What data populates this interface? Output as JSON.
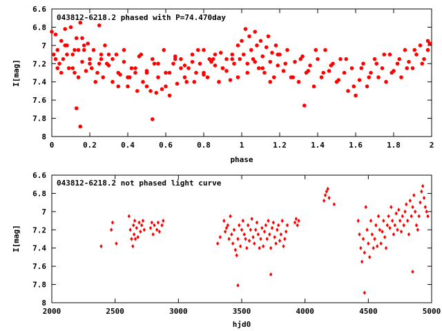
{
  "chart_data": [
    {
      "type": "scatter",
      "title": "043812-6218.2 phased with P=74.470day",
      "xlabel": "phase",
      "ylabel": "I[mag]",
      "xlim": [
        0,
        2
      ],
      "ylim": [
        6.6,
        8
      ],
      "y_inverted": true,
      "grid": false,
      "legend": "none",
      "marker": "filled-circle",
      "color": "#ff0000",
      "x_ticks": [
        "0",
        "0.2",
        "0.4",
        "0.6",
        "0.8",
        "1",
        "1.2",
        "1.4",
        "1.6",
        "1.8",
        "2"
      ],
      "y_ticks": [
        "6.6",
        "6.8",
        "7",
        "7.2",
        "7.4",
        "7.6",
        "7.8",
        "8"
      ],
      "series": [
        {
          "x": [
            0.0,
            0.01,
            0.02,
            0.03,
            0.04,
            0.05,
            0.06,
            0.07,
            0.08,
            0.09,
            0.1,
            0.11,
            0.12,
            0.13,
            0.14,
            0.15,
            0.16,
            0.17,
            0.18,
            0.19,
            0.2,
            0.22,
            0.24,
            0.25,
            0.26,
            0.27,
            0.28,
            0.3,
            0.32,
            0.34,
            0.36,
            0.38,
            0.4,
            0.42,
            0.44,
            0.46,
            0.48,
            0.5,
            0.52,
            0.54,
            0.56,
            0.58,
            0.6,
            0.62,
            0.64,
            0.66,
            0.68,
            0.7,
            0.72,
            0.74,
            0.76,
            0.78,
            0.8,
            0.82,
            0.84,
            0.86,
            0.88,
            0.9,
            0.92,
            0.94,
            0.96,
            0.98,
            0.99,
            0.02,
            0.05,
            0.08,
            0.11,
            0.14,
            0.17,
            0.2,
            0.23,
            0.26,
            0.29,
            0.32,
            0.35,
            0.38,
            0.41,
            0.44,
            0.47,
            0.5,
            0.53,
            0.56,
            0.59,
            0.62,
            0.65,
            0.68,
            0.71,
            0.74,
            0.77,
            0.8,
            0.83,
            0.86,
            0.89,
            0.92,
            0.95,
            0.98,
            0.03,
            0.07,
            0.12,
            0.16,
            0.21,
            0.25,
            0.3,
            0.35,
            0.4,
            0.45,
            0.5,
            0.55,
            0.6,
            0.65,
            0.7,
            0.75,
            0.8,
            0.85,
            0.9,
            0.95,
            0.13,
            0.15,
            0.53
          ],
          "y": [
            6.85,
            7.1,
            6.88,
            7.05,
            7.2,
            6.95,
            7.15,
            6.82,
            7.0,
            7.25,
            6.8,
            7.1,
            7.3,
            6.92,
            7.05,
            6.75,
            7.18,
            7.0,
            7.28,
            6.98,
            7.2,
            7.05,
            7.3,
            6.78,
            7.15,
            7.35,
            7.0,
            7.22,
            7.4,
            7.1,
            7.32,
            7.18,
            7.45,
            7.25,
            7.3,
            7.12,
            7.4,
            7.28,
            7.5,
            7.2,
            7.35,
            7.48,
            7.3,
            7.55,
            7.2,
            7.42,
            7.15,
            7.35,
            7.25,
            7.1,
            7.3,
            7.2,
            7.05,
            7.35,
            7.18,
            7.1,
            7.4,
            7.25,
            7.15,
            7.38,
            7.2,
            7.0,
            7.15,
            7.15,
            7.3,
            7.1,
            7.25,
            7.35,
            7.05,
            7.15,
            7.4,
            7.1,
            7.2,
            7.15,
            7.3,
            7.05,
            7.35,
            7.25,
            7.1,
            7.45,
            7.15,
            7.2,
            7.05,
            7.3,
            7.12,
            7.25,
            7.4,
            7.18,
            7.05,
            7.32,
            7.15,
            7.22,
            7.08,
            7.28,
            7.15,
            7.35,
            7.25,
            7.0,
            7.05,
            6.92,
            7.25,
            7.2,
            7.1,
            7.45,
            7.35,
            7.5,
            7.3,
            7.52,
            7.45,
            7.15,
            7.22,
            7.4,
            7.3,
            7.15,
            7.25,
            7.1,
            7.69,
            7.89,
            7.81
          ]
        },
        {
          "x": [
            1.0,
            1.01,
            1.02,
            1.03,
            1.04,
            1.05,
            1.06,
            1.07,
            1.08,
            1.09,
            1.1,
            1.11,
            1.12,
            1.13,
            1.14,
            1.15,
            1.16,
            1.17,
            1.18,
            1.19,
            1.2,
            1.22,
            1.24,
            1.26,
            1.28,
            1.3,
            1.32,
            1.34,
            1.36,
            1.38,
            1.4,
            1.42,
            1.44,
            1.46,
            1.48,
            1.5,
            1.52,
            1.54,
            1.56,
            1.58,
            1.6,
            1.62,
            1.64,
            1.66,
            1.68,
            1.7,
            1.72,
            1.74,
            1.76,
            1.78,
            1.8,
            1.82,
            1.84,
            1.86,
            1.88,
            1.9,
            1.92,
            1.94,
            1.96,
            1.98,
            1.99,
            1.03,
            1.07,
            1.11,
            1.15,
            1.19,
            1.23,
            1.27,
            1.31,
            1.35,
            1.39,
            1.43,
            1.47,
            1.51,
            1.55,
            1.59,
            1.63,
            1.67,
            1.71,
            1.75,
            1.79,
            1.83,
            1.87,
            1.91,
            1.95,
            1.98,
            1.33
          ],
          "y": [
            6.95,
            7.1,
            6.82,
            7.2,
            6.9,
            7.05,
            7.15,
            6.85,
            7.0,
            7.25,
            6.95,
            7.12,
            7.3,
            7.02,
            6.9,
            7.18,
            7.08,
            7.35,
            7.0,
            7.22,
            7.1,
            7.28,
            7.05,
            7.35,
            7.18,
            7.4,
            7.12,
            7.3,
            7.22,
            7.45,
            7.15,
            7.35,
            7.05,
            7.28,
            7.2,
            7.4,
            7.15,
            7.3,
            7.5,
            7.25,
            7.55,
            7.38,
            7.2,
            7.45,
            7.3,
            7.15,
            7.35,
            7.25,
            7.4,
            7.1,
            7.28,
            7.2,
            7.35,
            7.05,
            7.18,
            7.25,
            7.1,
            7.0,
            7.15,
            7.05,
            6.98,
            7.3,
            7.18,
            7.25,
            7.4,
            7.1,
            7.2,
            7.35,
            7.15,
            7.28,
            7.05,
            7.3,
            7.22,
            7.38,
            7.15,
            7.45,
            7.25,
            7.35,
            7.2,
            7.1,
            7.3,
            7.15,
            7.25,
            7.05,
            7.2,
            6.95,
            7.66
          ]
        }
      ]
    },
    {
      "type": "scatter",
      "title": "043812-6218.2 not phased light curve",
      "xlabel": "hjd0",
      "ylabel": "I[mag]",
      "xlim": [
        2000,
        5000
      ],
      "ylim": [
        6.6,
        8
      ],
      "y_inverted": true,
      "grid": false,
      "legend": "none",
      "marker": "filled-diamond",
      "color": "#ff0000",
      "x_ticks": [
        "2000",
        "2500",
        "3000",
        "3500",
        "4000",
        "4500",
        "5000"
      ],
      "y_ticks": [
        "6.6",
        "6.8",
        "7",
        "7.2",
        "7.4",
        "7.6",
        "7.8",
        "8"
      ],
      "series": [
        {
          "x": [
            2390,
            2470,
            2480,
            2510,
            2610,
            2620,
            2630,
            2640,
            2645,
            2650,
            2655,
            2660,
            2670,
            2680,
            2690,
            2700,
            2710,
            2720,
            2730,
            2780,
            2790,
            2800,
            2810,
            2830,
            2840,
            2850,
            2870,
            2880,
            3310,
            3330,
            3360,
            3370,
            3380,
            3390,
            3400,
            3410,
            3420,
            3430,
            3440,
            3450,
            3460,
            3470,
            3480,
            3490,
            3500,
            3510,
            3520,
            3530,
            3540,
            3550,
            3560,
            3570,
            3580,
            3590,
            3600,
            3610,
            3620,
            3630,
            3640,
            3650,
            3660,
            3670,
            3680,
            3690,
            3700,
            3710,
            3720,
            3730,
            3740,
            3750,
            3760,
            3770,
            3780,
            3790,
            3800,
            3810,
            3820,
            3830,
            3840,
            3850,
            3860,
            3920,
            3930,
            3940,
            3950,
            4150,
            4160,
            4170,
            4180,
            4190,
            4230,
            4420,
            4430,
            4440,
            4450,
            4460,
            4470,
            4480,
            4490,
            4500,
            4510,
            4520,
            4530,
            4540,
            4550,
            4560,
            4570,
            4580,
            4590,
            4600,
            4610,
            4620,
            4630,
            4640,
            4650,
            4660,
            4670,
            4680,
            4690,
            4700,
            4710,
            4720,
            4730,
            4740,
            4750,
            4760,
            4770,
            4780,
            4790,
            4800,
            4810,
            4820,
            4830,
            4840,
            4850,
            4860,
            4870,
            4880,
            4890,
            4900,
            4910,
            4920,
            4930,
            4940,
            4950,
            4960,
            4970,
            3470,
            3730,
            4470,
            4850
          ],
          "y": [
            7.38,
            7.2,
            7.12,
            7.35,
            7.05,
            7.2,
            7.3,
            7.38,
            7.15,
            7.25,
            7.1,
            7.3,
            7.18,
            7.28,
            7.12,
            7.22,
            7.15,
            7.1,
            7.2,
            7.18,
            7.12,
            7.25,
            7.15,
            7.2,
            7.12,
            7.22,
            7.15,
            7.1,
            7.35,
            7.28,
            7.1,
            7.22,
            7.18,
            7.15,
            7.3,
            7.05,
            7.25,
            7.35,
            7.2,
            7.42,
            7.48,
            7.3,
            7.15,
            7.38,
            7.2,
            7.1,
            7.25,
            7.3,
            7.4,
            7.15,
            7.32,
            7.2,
            7.08,
            7.28,
            7.35,
            7.2,
            7.12,
            7.25,
            7.4,
            7.3,
            7.18,
            7.38,
            7.22,
            7.15,
            7.3,
            7.1,
            7.25,
            7.4,
            7.18,
            7.12,
            7.28,
            7.35,
            7.2,
            7.15,
            7.32,
            7.25,
            7.1,
            7.38,
            7.3,
            7.22,
            7.15,
            7.12,
            7.08,
            7.15,
            7.1,
            6.88,
            6.82,
            6.78,
            6.75,
            6.85,
            6.92,
            7.1,
            7.25,
            7.4,
            7.55,
            7.3,
            7.45,
            6.95,
            7.2,
            7.35,
            7.5,
            7.1,
            7.25,
            7.4,
            7.3,
            7.15,
            7.38,
            7.05,
            7.2,
            7.35,
            7.22,
            7.1,
            7.28,
            7.4,
            7.15,
            7.05,
            7.18,
            6.95,
            7.1,
            7.25,
            7.15,
            7.02,
            7.2,
            6.98,
            7.1,
            7.22,
            7.05,
            7.15,
            7.0,
            6.92,
            7.1,
            7.25,
            6.88,
            7.05,
            6.95,
            6.82,
            7.0,
            7.15,
            7.2,
            7.05,
            6.9,
            6.78,
            6.72,
            6.85,
            6.95,
            7.0,
            7.05,
            7.81,
            7.69,
            7.89,
            7.66
          ]
        }
      ]
    }
  ]
}
